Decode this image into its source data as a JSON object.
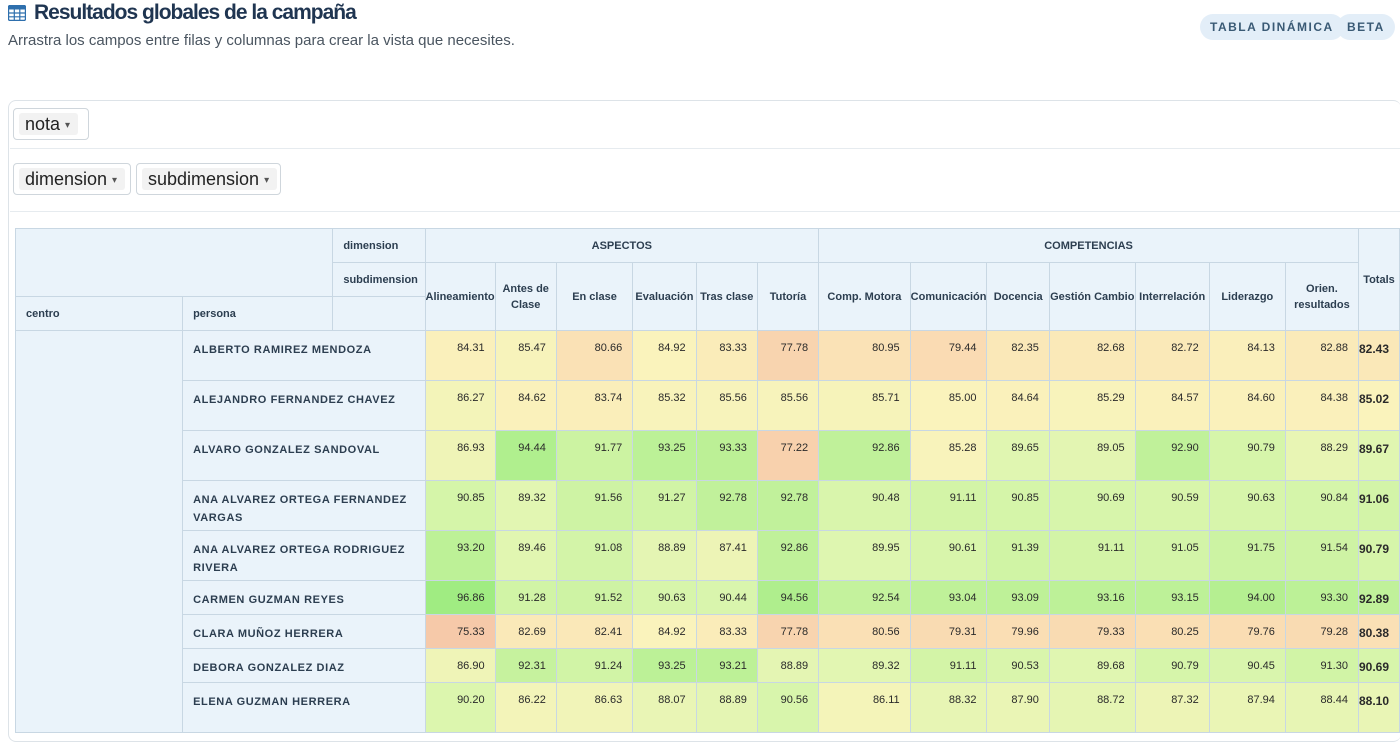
{
  "header": {
    "title": "Resultados globales de la campaña",
    "subtitle": "Arrastra los campos entre filas y columnas para crear la vista que necesites.",
    "badges": [
      "TABLA DINÁMICA",
      "BETA"
    ]
  },
  "fields": {
    "values": [
      "nota"
    ],
    "cols": [
      "dimension",
      "subdimension"
    ]
  },
  "pivot": {
    "dim_label": "dimension",
    "subdim_label": "subdimension",
    "row_headers": [
      "centro",
      "persona"
    ],
    "totals_label": "Totals",
    "dimensions": [
      {
        "name": "ASPECTOS",
        "subs": [
          "Alineamiento",
          "Antes de Clase",
          "En clase",
          "Evaluación",
          "Tras clase",
          "Tutoría"
        ]
      },
      {
        "name": "COMPETENCIAS",
        "subs": [
          "Comp. Motora",
          "Comunicación",
          "Docencia",
          "Gestión Cambio",
          "Interrelación",
          "Liderazgo",
          "Orien. resultados"
        ]
      }
    ],
    "rows": [
      {
        "persona": "ALBERTO RAMIREZ MENDOZA",
        "values": [
          "84.31",
          "85.47",
          "80.66",
          "84.92",
          "83.33",
          "77.78",
          "80.95",
          "79.44",
          "82.35",
          "82.68",
          "82.72",
          "84.13",
          "82.88"
        ],
        "total": "82.43"
      },
      {
        "persona": "ALEJANDRO FERNANDEZ CHAVEZ",
        "values": [
          "86.27",
          "84.62",
          "83.74",
          "85.32",
          "85.56",
          "85.56",
          "85.71",
          "85.00",
          "84.64",
          "85.29",
          "84.57",
          "84.60",
          "84.38"
        ],
        "total": "85.02"
      },
      {
        "persona": "ALVARO GONZALEZ SANDOVAL",
        "values": [
          "86.93",
          "94.44",
          "91.77",
          "93.25",
          "93.33",
          "77.22",
          "92.86",
          "85.28",
          "89.65",
          "89.05",
          "92.90",
          "90.79",
          "88.29"
        ],
        "total": "89.67"
      },
      {
        "persona": "ANA ALVAREZ ORTEGA FERNANDEZ VARGAS",
        "values": [
          "90.85",
          "89.32",
          "91.56",
          "91.27",
          "92.78",
          "92.78",
          "90.48",
          "91.11",
          "90.85",
          "90.69",
          "90.59",
          "90.63",
          "90.84"
        ],
        "total": "91.06"
      },
      {
        "persona": "ANA ALVAREZ ORTEGA RODRIGUEZ RIVERA",
        "values": [
          "93.20",
          "89.46",
          "91.08",
          "88.89",
          "87.41",
          "92.86",
          "89.95",
          "90.61",
          "91.39",
          "91.11",
          "91.05",
          "91.75",
          "91.54"
        ],
        "total": "90.79"
      },
      {
        "persona": "CARMEN GUZMAN REYES",
        "values": [
          "96.86",
          "91.28",
          "91.52",
          "90.63",
          "90.44",
          "94.56",
          "92.54",
          "93.04",
          "93.09",
          "93.16",
          "93.15",
          "94.00",
          "93.30"
        ],
        "total": "92.89"
      },
      {
        "persona": "CLARA MUÑOZ HERRERA",
        "values": [
          "75.33",
          "82.69",
          "82.41",
          "84.92",
          "83.33",
          "77.78",
          "80.56",
          "79.31",
          "79.96",
          "79.33",
          "80.25",
          "79.76",
          "79.28"
        ],
        "total": "80.38"
      },
      {
        "persona": "DEBORA GONZALEZ DIAZ",
        "values": [
          "86.90",
          "92.31",
          "91.24",
          "93.25",
          "93.21",
          "88.89",
          "89.32",
          "91.11",
          "90.53",
          "89.68",
          "90.79",
          "90.45",
          "91.30"
        ],
        "total": "90.69"
      },
      {
        "persona": "ELENA GUZMAN HERRERA",
        "values": [
          "90.20",
          "86.22",
          "86.63",
          "88.07",
          "88.89",
          "90.56",
          "86.11",
          "88.32",
          "87.90",
          "88.72",
          "87.32",
          "87.94",
          "88.44"
        ],
        "total": "88.10"
      }
    ]
  },
  "colors": {
    "header_bg": "#eaf3fa",
    "grid": "#c8d7e3",
    "title": "#1f3551",
    "badge_bg": "#e3eef8"
  }
}
